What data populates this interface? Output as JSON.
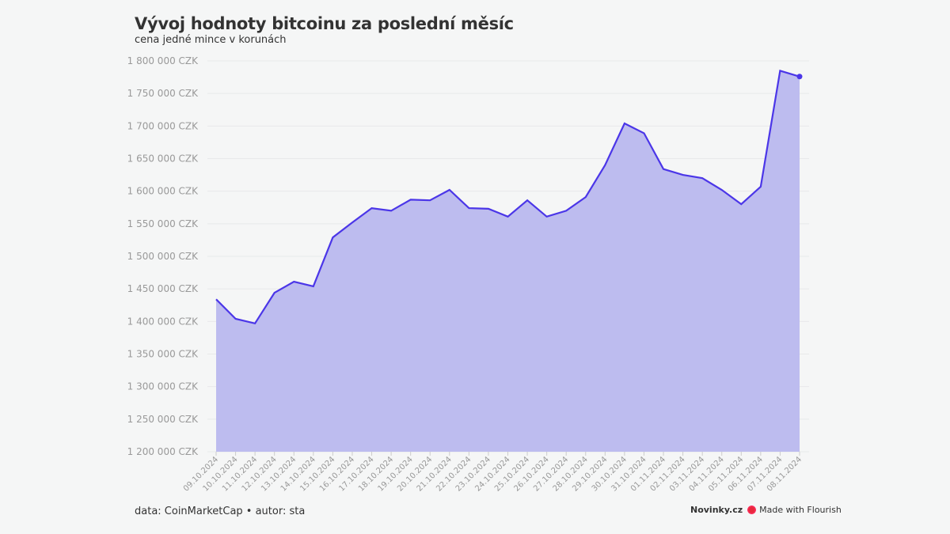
{
  "title": "Vývoj hodnoty bitcoinu za poslední měsíc",
  "subtitle": "cena jedné mince v korunách",
  "source": "data: CoinMarketCap • autor: sta",
  "brand": {
    "publisher": "Novinky.cz",
    "credit": "Made with Flourish",
    "credit_icon": "flourish-logo-icon"
  },
  "colors": {
    "line": "#4b36e8",
    "area": "#bdbcef",
    "background": "#f5f6f6",
    "grid": "#e8e9ea",
    "tick_text": "#999999"
  },
  "chart_data": {
    "type": "area",
    "title": "Vývoj hodnoty bitcoinu za poslední měsíc",
    "subtitle": "cena jedné mince v korunách",
    "xlabel": "",
    "ylabel": "",
    "ylim": [
      1200000,
      1800000
    ],
    "grid": true,
    "y_ticks": [
      {
        "value": 1200000,
        "label": "1 200 000 CZK"
      },
      {
        "value": 1250000,
        "label": "1 250 000 CZK"
      },
      {
        "value": 1300000,
        "label": "1 300 000 CZK"
      },
      {
        "value": 1350000,
        "label": "1 350 000 CZK"
      },
      {
        "value": 1400000,
        "label": "1 400 000 CZK"
      },
      {
        "value": 1450000,
        "label": "1 450 000 CZK"
      },
      {
        "value": 1500000,
        "label": "1 500 000 CZK"
      },
      {
        "value": 1550000,
        "label": "1 550 000 CZK"
      },
      {
        "value": 1600000,
        "label": "1 600 000 CZK"
      },
      {
        "value": 1650000,
        "label": "1 650 000 CZK"
      },
      {
        "value": 1700000,
        "label": "1 700 000 CZK"
      },
      {
        "value": 1750000,
        "label": "1 750 000 CZK"
      },
      {
        "value": 1800000,
        "label": "1 800 000 CZK"
      }
    ],
    "x": [
      "09.10.2024",
      "10.10.2024",
      "11.10.2024",
      "12.10.2024",
      "13.10.2024",
      "14.10.2024",
      "15.10.2024",
      "16.10.2024",
      "17.10.2024",
      "18.10.2024",
      "19.10.2024",
      "20.10.2024",
      "21.10.2024",
      "22.10.2024",
      "23.10.2024",
      "24.10.2024",
      "25.10.2024",
      "26.10.2024",
      "27.10.2024",
      "28.10.2024",
      "29.10.2024",
      "30.10.2024",
      "31.10.2024",
      "01.11.2024",
      "02.11.2024",
      "03.11.2024",
      "04.11.2024",
      "05.11.2024",
      "06.11.2024",
      "07.11.2024",
      "08.11.2024"
    ],
    "values": [
      1434000,
      1404000,
      1397000,
      1444000,
      1461000,
      1454000,
      1529000,
      1552000,
      1574000,
      1570000,
      1587000,
      1586000,
      1602000,
      1574000,
      1573000,
      1561000,
      1586000,
      1561000,
      1570000,
      1591000,
      1640000,
      1704000,
      1689000,
      1634000,
      1625000,
      1620000,
      1602000,
      1580000,
      1607000,
      1785000,
      1776000
    ]
  }
}
